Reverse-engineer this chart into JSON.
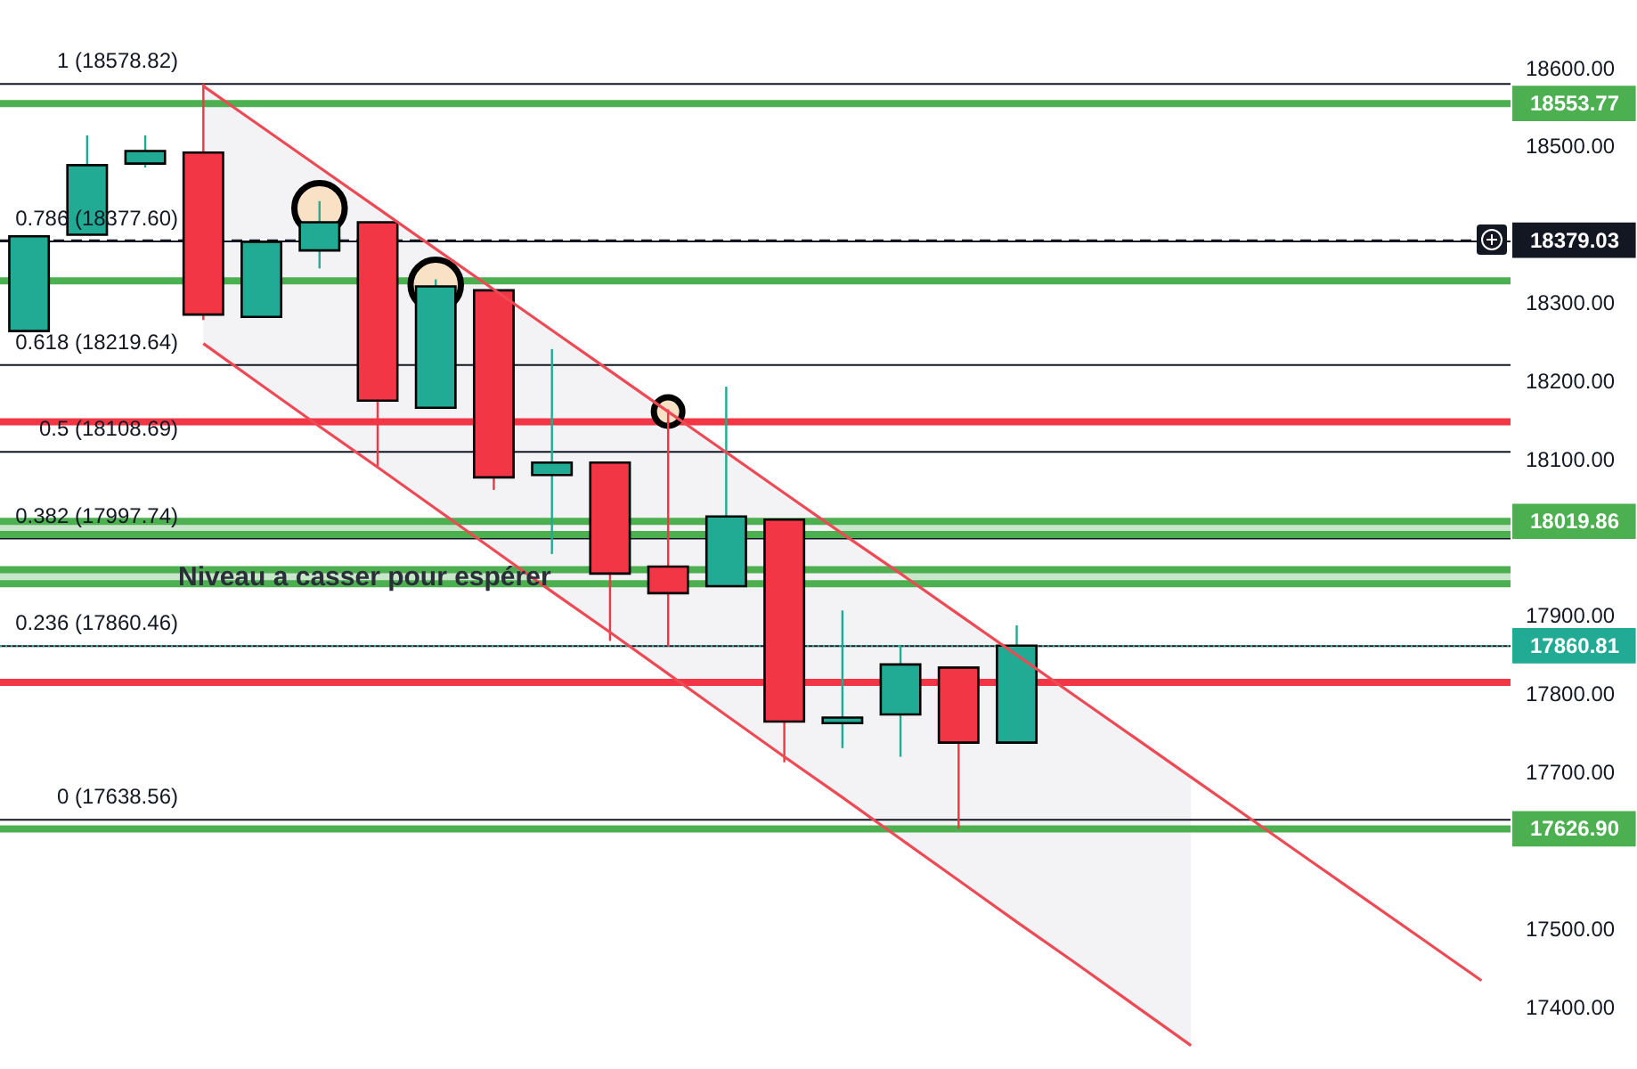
{
  "chart_data": {
    "type": "candlestick",
    "categories": [
      null,
      null,
      null,
      null,
      null,
      null,
      null,
      null,
      null,
      null,
      null,
      null,
      null,
      null,
      null,
      null,
      null,
      null,
      null,
      null,
      null,
      null,
      null,
      null,
      null,
      null
    ],
    "ohlc": [
      [
        18263,
        18384,
        18263,
        18384
      ],
      [
        18386,
        18513,
        18386,
        18475
      ],
      [
        18477,
        18513,
        18472,
        18493
      ],
      [
        18491,
        18579,
        18277,
        18284
      ],
      [
        18281,
        18377,
        18281,
        18377
      ],
      [
        18366,
        18429,
        18343,
        18402
      ],
      [
        18402,
        18402,
        18090,
        18174
      ],
      [
        18165,
        18329,
        18165,
        18320
      ],
      [
        18315,
        18315,
        18060,
        18076
      ],
      [
        18079,
        18240,
        17978,
        18095
      ],
      [
        18095,
        18095,
        17867,
        17953
      ],
      [
        17962,
        18163,
        17860,
        17928
      ],
      [
        17937,
        18192,
        17937,
        18026
      ],
      [
        18022,
        18022,
        17712,
        17764
      ],
      [
        17762,
        17906,
        17730,
        17769
      ],
      [
        17773,
        17862,
        17719,
        17837
      ],
      [
        17833,
        17833,
        17627,
        17737
      ],
      [
        17737,
        17887,
        17737,
        17861
      ],
      null,
      null,
      null,
      null,
      null,
      null,
      null,
      null
    ],
    "colors": [
      "#22ab94",
      "#22ab94",
      "#22ab94",
      "#f23645",
      "#22ab94",
      "#22ab94",
      "#f23645",
      "#22ab94",
      "#f23645",
      "#22ab94",
      "#f23645",
      "#f23645",
      "#22ab94",
      "#f23645",
      "#22ab94",
      "#22ab94",
      "#f23645",
      "#22ab94",
      null,
      null,
      null,
      null,
      null,
      null,
      null,
      null
    ],
    "series": [
      {
        "type": "line",
        "color": "#ee4a55",
        "values": [
          null,
          null,
          null,
          18576,
          18524,
          18472,
          18420,
          18368,
          18316,
          18264,
          18212,
          18160,
          18108,
          18056,
          18004,
          17953,
          17901,
          17849,
          17797,
          17745,
          17693,
          17641,
          17589,
          17537,
          17485,
          17433
        ],
        "upper": [
          null,
          null,
          null,
          18576,
          18524,
          18472,
          18420,
          18368,
          18316,
          18264,
          18212,
          18160,
          18108,
          18056,
          18004,
          17953,
          17901,
          17849,
          17797,
          17745,
          17693,
          null,
          null,
          null,
          null,
          null
        ],
        "lower": [
          null,
          null,
          null,
          18247,
          18194,
          18141,
          18089,
          18036,
          17983,
          17930,
          17878,
          17825,
          17772,
          17719,
          17667,
          17614,
          17561,
          17508,
          17456,
          17403,
          17350,
          null,
          null,
          null,
          null,
          null
        ]
      },
      {
        "type": "line",
        "color": "#ee4a55",
        "values": [
          null,
          null,
          null,
          18247,
          18194,
          18141,
          18089,
          18036,
          17983,
          17930,
          17878,
          17825,
          17772,
          17719,
          17667,
          17614,
          17561,
          17508,
          17456,
          17403,
          17350,
          null,
          null,
          null,
          null,
          null
        ]
      },
      {
        "type": "scatter",
        "marker": "circle",
        "color": "#f8e1c4",
        "values": [
          null,
          null,
          null,
          null,
          null,
          18420,
          null,
          18322,
          null,
          null,
          null,
          18160,
          null,
          null,
          null,
          null,
          null,
          null,
          null,
          null,
          null,
          null,
          null,
          null,
          null,
          null
        ],
        "sizes": [
          null,
          null,
          null,
          null,
          null,
          1,
          null,
          1,
          null,
          null,
          null,
          0.32,
          null,
          null,
          null,
          null,
          null,
          null,
          null,
          null,
          null,
          null,
          null,
          null,
          null,
          null
        ]
      }
    ],
    "bands": [
      {
        "axis": "y",
        "from": 18003,
        "to": 18020,
        "color": "#c8e6c9"
      },
      {
        "axis": "y",
        "from": 17940,
        "to": 17958,
        "color": "#c8e6c9",
        "label": "Niveau a casser pour espérer"
      }
    ],
    "ref_lines": [
      {
        "axis": "y",
        "value": 18578.82,
        "color": "#131722",
        "line_style": "solid"
      },
      {
        "axis": "y",
        "value": 18377.6,
        "color": "#131722",
        "line_style": "solid"
      },
      {
        "axis": "y",
        "value": 18219.64,
        "color": "#131722",
        "line_style": "solid"
      },
      {
        "axis": "y",
        "value": 18108.69,
        "color": "#131722",
        "line_style": "solid"
      },
      {
        "axis": "y",
        "value": 17997.74,
        "color": "#131722",
        "line_style": "solid"
      },
      {
        "axis": "y",
        "value": 17860.46,
        "color": "#131722",
        "line_style": "solid"
      },
      {
        "axis": "y",
        "value": 17638.56,
        "color": "#131722",
        "line_style": "solid"
      },
      {
        "axis": "y",
        "value": 18379.03,
        "label": "18379.03",
        "color": "#131722",
        "line_style": "dashed"
      },
      {
        "axis": "y",
        "value": 17860.81,
        "label": "17860.81",
        "color": "#22ab94",
        "line_style": "dotted"
      },
      {
        "axis": "y",
        "value": 18553.77,
        "label": "18553.77",
        "color": "#4caf50",
        "line_style": "solid"
      },
      {
        "axis": "y",
        "value": 18019.86,
        "label": "18019.86",
        "color": "#4caf50",
        "line_style": "solid"
      },
      {
        "axis": "y",
        "value": 18003,
        "color": "#4caf50",
        "line_style": "solid"
      },
      {
        "axis": "y",
        "value": 17958,
        "color": "#4caf50",
        "line_style": "solid"
      },
      {
        "axis": "y",
        "value": 17940,
        "color": "#4caf50",
        "line_style": "solid"
      },
      {
        "axis": "y",
        "value": 17626.9,
        "label": "17626.90",
        "color": "#4caf50",
        "line_style": "solid"
      },
      {
        "axis": "y",
        "value": 18327,
        "color": "#4caf50",
        "line_style": "solid"
      },
      {
        "axis": "y",
        "value": 18147,
        "color": "#f23645",
        "line_style": "solid"
      },
      {
        "axis": "y",
        "value": 17814,
        "color": "#f23645",
        "line_style": "solid"
      }
    ],
    "annotations": [
      {
        "text": "1 (18578.82)",
        "y": 18578.82
      },
      {
        "text": "0.786 (18377.60)",
        "y": 18377.6
      },
      {
        "text": "0.618 (18219.64)",
        "y": 18219.64
      },
      {
        "text": "0.5 (18108.69)",
        "y": 18108.69
      },
      {
        "text": "0.382 (17997.74)",
        "y": 17997.74
      },
      {
        "text": "0.236 (17860.46)",
        "y": 17860.46
      },
      {
        "text": "0 (17638.56)",
        "y": 17638.56
      }
    ],
    "ylim": [
      17320,
      18686
    ],
    "yticks": [
      {
        "value": 17400,
        "label": "17400.00"
      },
      {
        "value": 17500,
        "label": "17500.00"
      },
      {
        "value": 17700,
        "label": "17700.00"
      },
      {
        "value": 17800,
        "label": "17800.00"
      },
      {
        "value": 17900,
        "label": "17900.00"
      },
      {
        "value": 18100,
        "label": "18100.00"
      },
      {
        "value": 18200,
        "label": "18200.00"
      },
      {
        "value": 18300,
        "label": "18300.00"
      },
      {
        "value": 18500,
        "label": "18500.00"
      },
      {
        "value": 18600,
        "label": "18600.00"
      }
    ],
    "tick_labels": "y",
    "grid": false
  }
}
